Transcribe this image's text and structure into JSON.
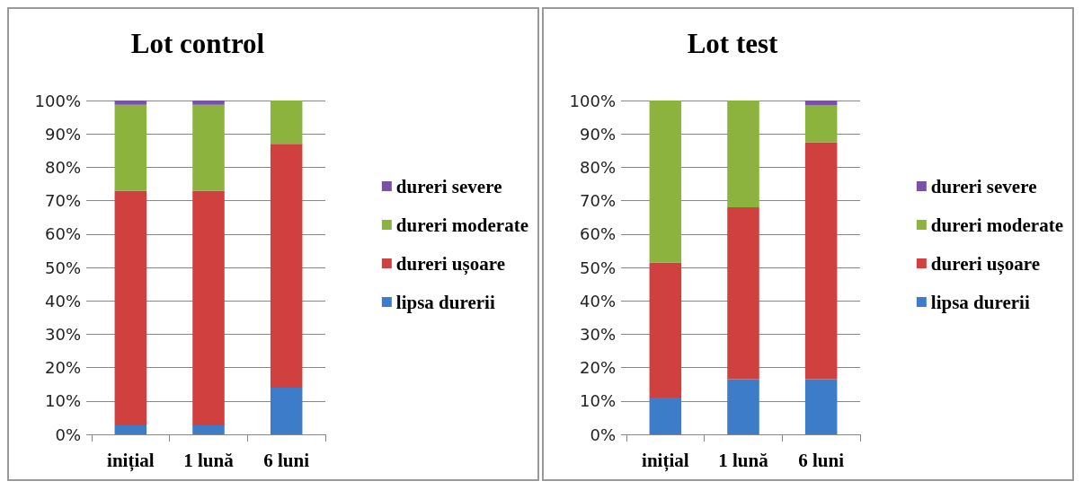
{
  "chart_data": [
    {
      "type": "bar",
      "title": "Lot control",
      "stacked": true,
      "categories": [
        "inițial",
        "1 lună",
        "6 luni"
      ],
      "series": [
        {
          "name": "lipsa durerii",
          "color": "#3d7cc9",
          "values": [
            2.7,
            2.7,
            14
          ]
        },
        {
          "name": "dureri ușoare",
          "color": "#d0403e",
          "values": [
            70.3,
            70.3,
            73
          ]
        },
        {
          "name": "dureri moderate",
          "color": "#8cb33d",
          "values": [
            25.7,
            25.7,
            13
          ]
        },
        {
          "name": "dureri severe",
          "color": "#7752a5",
          "values": [
            1.3,
            1.3,
            0
          ]
        }
      ],
      "ylim": [
        0,
        100
      ],
      "yticks": [
        {
          "value": 0,
          "label": "0%"
        },
        {
          "value": 10,
          "label": "10%"
        },
        {
          "value": 20,
          "label": "20%"
        },
        {
          "value": 30,
          "label": "30%"
        },
        {
          "value": 40,
          "label": "40%"
        },
        {
          "value": 50,
          "label": "50%"
        },
        {
          "value": 60,
          "label": "60%"
        },
        {
          "value": 70,
          "label": "70%"
        },
        {
          "value": 80,
          "label": "80%"
        },
        {
          "value": 90,
          "label": "90%"
        },
        {
          "value": 100,
          "label": "100%"
        }
      ],
      "grid": "y",
      "legend": "right"
    },
    {
      "type": "bar",
      "title": "Lot test",
      "stacked": true,
      "categories": [
        "inițial",
        "1 lună",
        "6 luni"
      ],
      "series": [
        {
          "name": "lipsa durerii",
          "color": "#3d7cc9",
          "values": [
            11,
            16.5,
            16.5
          ]
        },
        {
          "name": "dureri ușoare",
          "color": "#d0403e",
          "values": [
            40.5,
            51.5,
            71
          ]
        },
        {
          "name": "dureri moderate",
          "color": "#8cb33d",
          "values": [
            48.5,
            32,
            11
          ]
        },
        {
          "name": "dureri severe",
          "color": "#7752a5",
          "values": [
            0,
            0,
            1.5
          ]
        }
      ],
      "ylim": [
        0,
        100
      ],
      "yticks": [
        {
          "value": 0,
          "label": "0%"
        },
        {
          "value": 10,
          "label": "10%"
        },
        {
          "value": 20,
          "label": "20%"
        },
        {
          "value": 30,
          "label": "30%"
        },
        {
          "value": 40,
          "label": "40%"
        },
        {
          "value": 50,
          "label": "50%"
        },
        {
          "value": 60,
          "label": "60%"
        },
        {
          "value": 70,
          "label": "70%"
        },
        {
          "value": 80,
          "label": "80%"
        },
        {
          "value": 90,
          "label": "90%"
        },
        {
          "value": 100,
          "label": "100%"
        }
      ],
      "grid": "y",
      "legend": "right"
    }
  ]
}
